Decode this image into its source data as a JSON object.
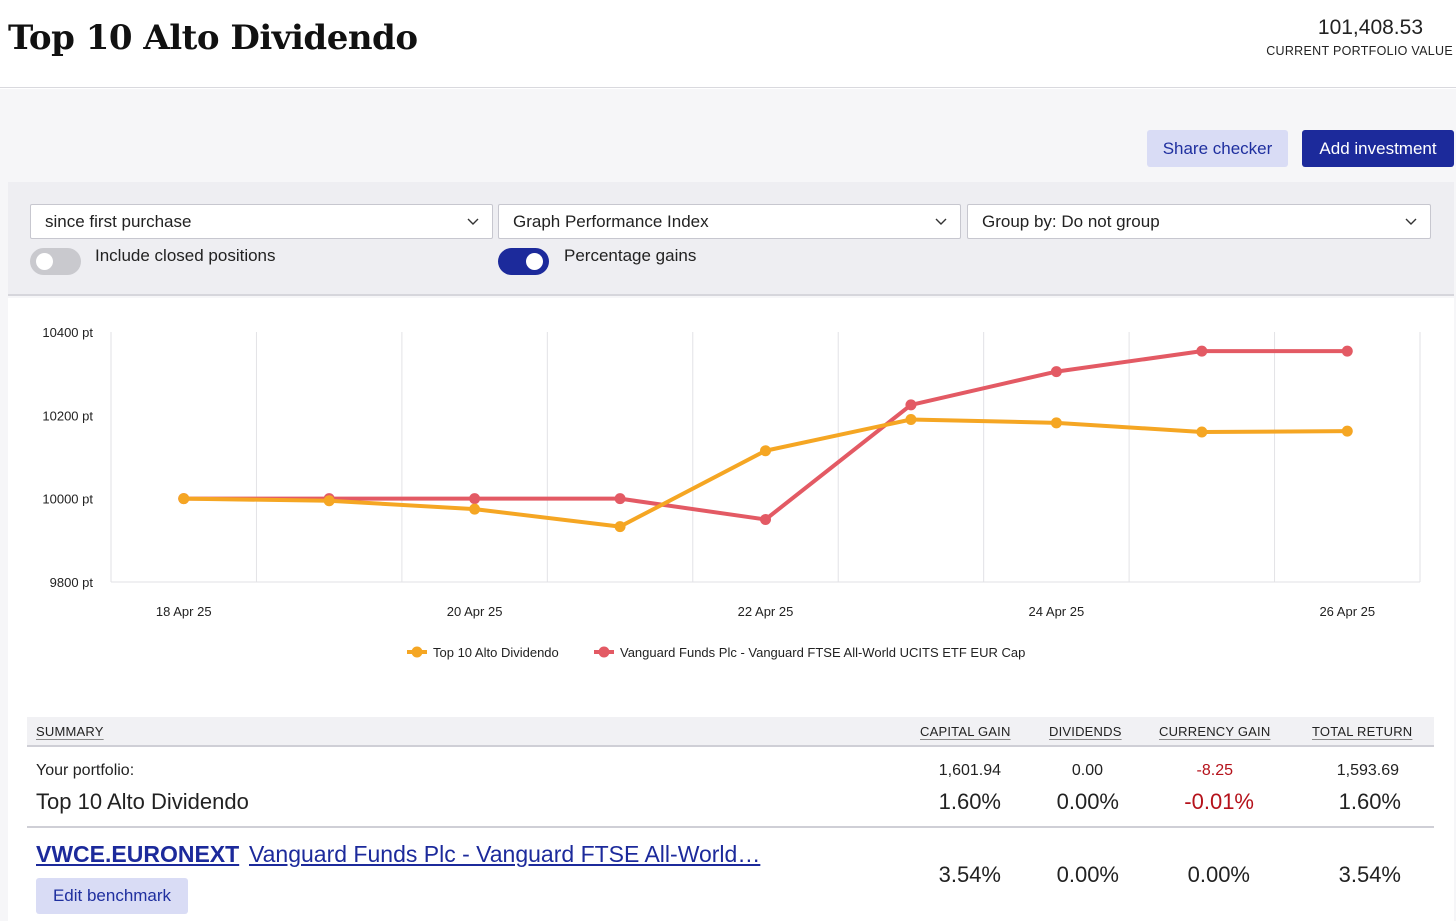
{
  "header": {
    "title": "Top 10 Alto Dividendo",
    "portfolio_value": "101,408.53",
    "portfolio_value_label": "CURRENT PORTFOLIO VALUE"
  },
  "actions": {
    "share_checker": "Share checker",
    "add_investment": "Add investment"
  },
  "controls": {
    "period": "since first purchase",
    "graph_type": "Graph Performance Index",
    "group_by": "Group by: Do not group",
    "include_closed_label": "Include closed positions",
    "include_closed_on": false,
    "percentage_gains_label": "Percentage gains",
    "percentage_gains_on": true
  },
  "chart_data": {
    "type": "line",
    "x": [
      "18 Apr 25",
      "19 Apr 25",
      "20 Apr 25",
      "21 Apr 25",
      "22 Apr 25",
      "23 Apr 25",
      "24 Apr 25",
      "25 Apr 25",
      "26 Apr 25"
    ],
    "x_tick_labels": [
      "18 Apr 25",
      "20 Apr 25",
      "22 Apr 25",
      "24 Apr 25",
      "26 Apr 25"
    ],
    "y_tick_labels": [
      "10400 pt",
      "10200 pt",
      "10000 pt",
      "9800 pt"
    ],
    "ylim": [
      9800,
      10400
    ],
    "grid": true,
    "legend_position": "bottom",
    "series": [
      {
        "name": "Top 10 Alto Dividendo",
        "color": "#f5a623",
        "values": [
          10000,
          9995,
          9975,
          9933,
          10115,
          10190,
          10182,
          10160,
          10162
        ]
      },
      {
        "name": "Vanguard Funds Plc - Vanguard FTSE All-World UCITS ETF EUR Cap",
        "color": "#e35a64",
        "values": [
          10000,
          10000,
          10000,
          10000,
          9950,
          10225,
          10305,
          10354,
          10354
        ]
      }
    ]
  },
  "summary": {
    "headers": {
      "summary": "SUMMARY",
      "capital_gain": "CAPITAL GAIN",
      "dividends": "DIVIDENDS",
      "currency_gain": "CURRENCY GAIN",
      "total_return": "TOTAL RETURN"
    },
    "portfolio": {
      "label": "Your portfolio:",
      "name": "Top 10 Alto Dividendo",
      "capital_gain": "1,601.94",
      "capital_gain_pct": "1.60%",
      "dividends": "0.00",
      "dividends_pct": "0.00%",
      "currency_gain": "-8.25",
      "currency_gain_pct": "-0.01%",
      "total_return": "1,593.69",
      "total_return_pct": "1.60%"
    },
    "benchmark": {
      "ticker": "VWCE.EURONEXT",
      "name": "Vanguard Funds Plc - Vanguard FTSE All-World…",
      "capital_gain_pct": "3.54%",
      "dividends_pct": "0.00%",
      "currency_gain_pct": "0.00%",
      "total_return_pct": "3.54%",
      "edit_label": "Edit benchmark"
    }
  }
}
